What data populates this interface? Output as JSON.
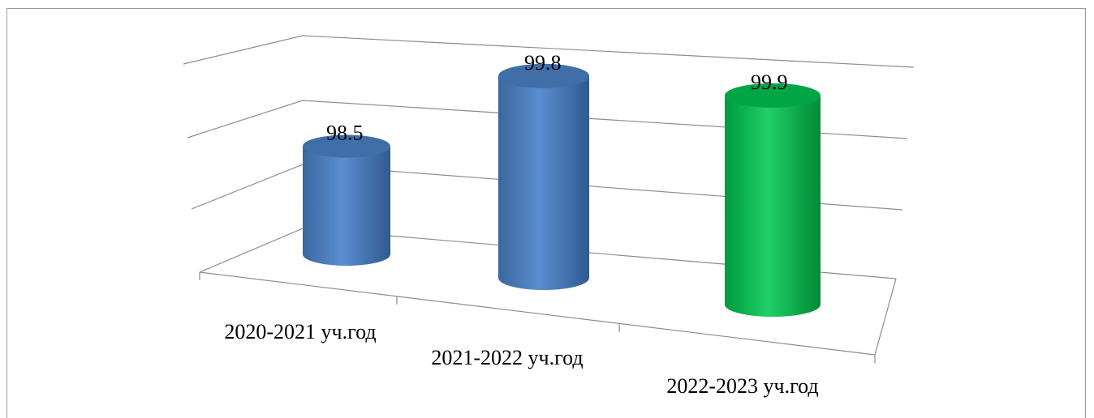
{
  "chart_data": {
    "type": "bar",
    "style": "3d-cylinder",
    "categories": [
      "2020-2021 уч.год",
      "2021-2022 уч.год",
      "2022-2023 уч.год"
    ],
    "values": [
      98.5,
      99.8,
      99.9
    ],
    "data_labels": [
      "98.5",
      "99.8",
      "99.9"
    ],
    "ylim": [
      97,
      100
    ],
    "grid": true,
    "legend": "none",
    "bar_colors": [
      "#4f81bd",
      "#4f81bd",
      "#00b050"
    ]
  }
}
